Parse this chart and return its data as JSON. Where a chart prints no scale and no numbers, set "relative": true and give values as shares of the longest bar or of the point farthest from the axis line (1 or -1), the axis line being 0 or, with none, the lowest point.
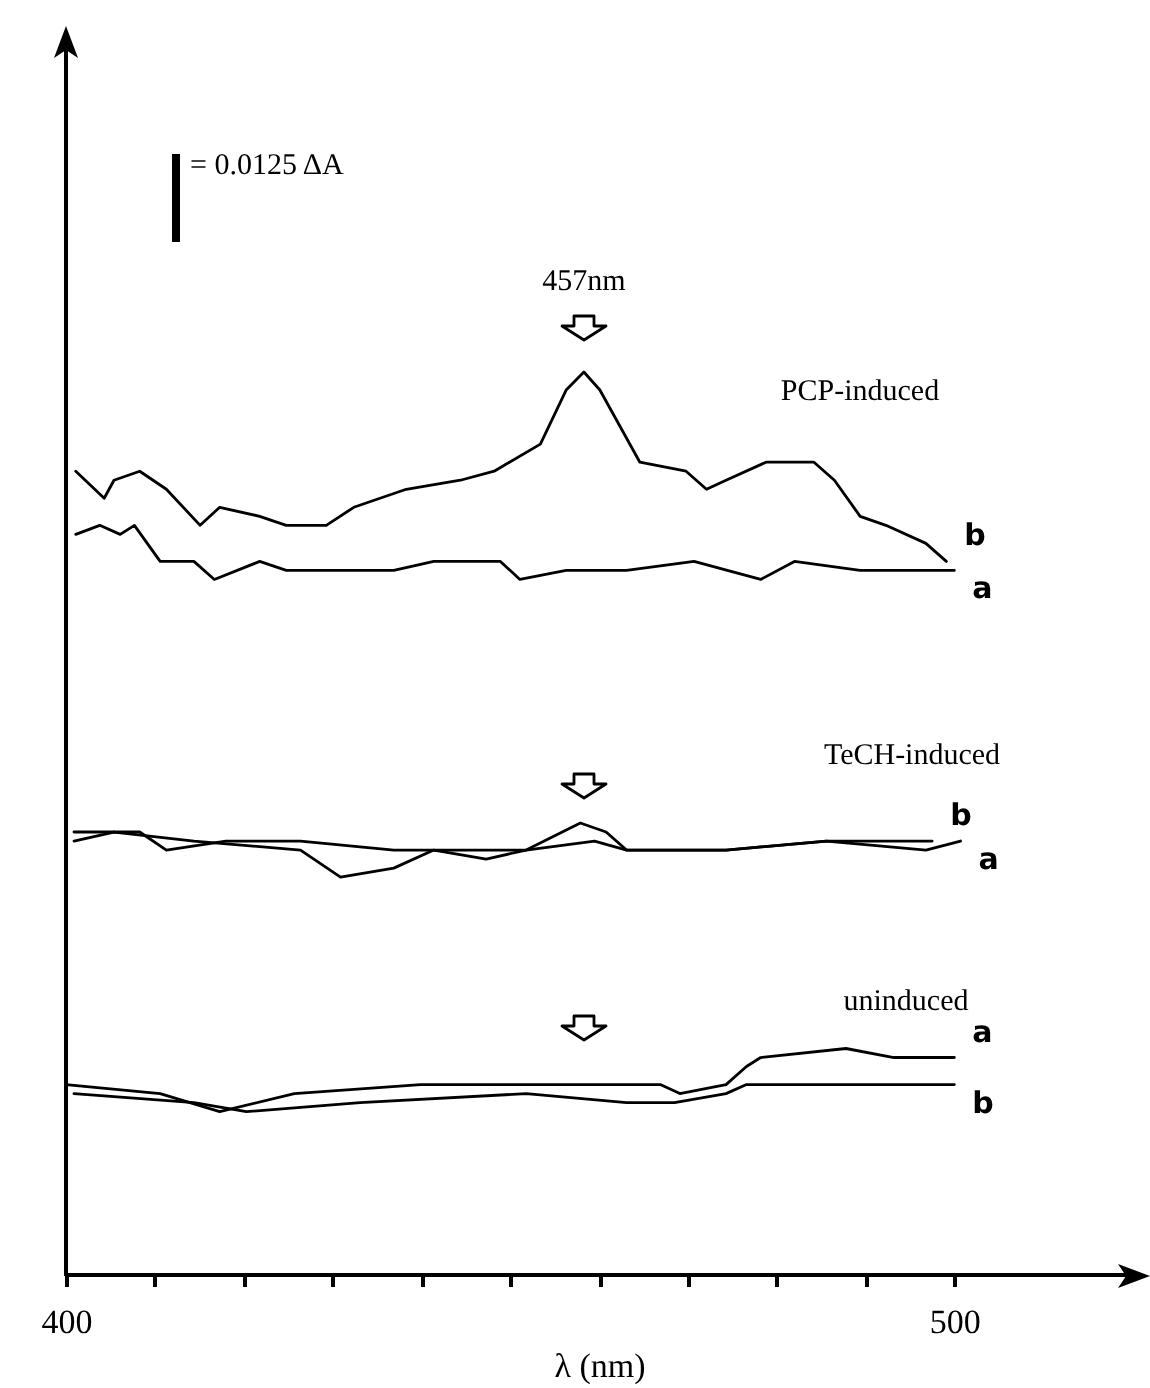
{
  "chart_data": {
    "type": "line",
    "relative": true,
    "xlabel": "λ (nm)",
    "xlim": [
      400,
      520
    ],
    "xticks": [
      400,
      {
        "value": 410,
        "label": null
      },
      {
        "value": 420,
        "label": null
      },
      {
        "value": 430,
        "label": null
      },
      {
        "value": 440,
        "label": null
      },
      {
        "value": 450,
        "label": null
      },
      {
        "value": 460,
        "label": null
      },
      {
        "value": 470,
        "label": null
      },
      {
        "value": 480,
        "label": null
      },
      {
        "value": 490,
        "label": null
      },
      500
    ],
    "annotations": [
      "= 0.0125 ΔA",
      "457nm",
      "PCP-induced",
      "TeCH-induced",
      "uninduced"
    ],
    "series": [
      {
        "name": "b",
        "color": "#000000",
        "x": [
          401.1,
          404.3,
          405.4,
          408.3,
          411.3,
          415.1,
          417.3,
          421.8,
          424.8,
          429.3,
          432.4,
          438.3,
          444.4,
          448.2,
          453.4,
          456.3,
          458.3,
          460.1,
          464.6,
          469.8,
          472.1,
          474.3,
          478.8,
          484.2,
          486.5,
          489.4,
          492.3,
          496.8,
          499.1
        ],
        "values": [
          0.89,
          0.86,
          0.88,
          0.89,
          0.87,
          0.83,
          0.85,
          0.84,
          0.83,
          0.83,
          0.85,
          0.87,
          0.88,
          0.89,
          0.92,
          0.98,
          1.0,
          0.98,
          0.9,
          0.89,
          0.87,
          0.88,
          0.9,
          0.9,
          0.88,
          0.84,
          0.83,
          0.81,
          0.79
        ]
      },
      {
        "name": "a",
        "color": "#000000",
        "x": [
          401.1,
          403.8,
          406.1,
          407.7,
          410.6,
          414.4,
          416.7,
          421.8,
          424.8,
          430.9,
          436.9,
          441.4,
          448.9,
          451.1,
          456.3,
          463.1,
          470.7,
          478.2,
          482.0,
          489.4,
          496.8,
          500.0
        ],
        "values": [
          0.82,
          0.83,
          0.82,
          0.83,
          0.79,
          0.79,
          0.77,
          0.79,
          0.78,
          0.78,
          0.78,
          0.79,
          0.79,
          0.77,
          0.78,
          0.78,
          0.79,
          0.77,
          0.79,
          0.78,
          0.78,
          0.78
        ]
      },
      {
        "name": "b",
        "color": "#000000",
        "x": [
          400.9,
          405.4,
          414.4,
          426.4,
          430.9,
          436.9,
          441.4,
          447.3,
          451.8,
          457.9,
          460.8,
          463.1,
          474.3,
          485.6,
          497.5
        ],
        "values": [
          0.48,
          0.49,
          0.48,
          0.47,
          0.44,
          0.45,
          0.47,
          0.46,
          0.47,
          0.5,
          0.49,
          0.47,
          0.47,
          0.48,
          0.48
        ]
      },
      {
        "name": "a",
        "color": "#000000",
        "x": [
          400.9,
          408.3,
          411.3,
          418.0,
          426.4,
          436.9,
          451.8,
          459.5,
          463.1,
          474.3,
          485.6,
          496.8,
          500.7
        ],
        "values": [
          0.49,
          0.49,
          0.47,
          0.48,
          0.48,
          0.47,
          0.47,
          0.48,
          0.47,
          0.47,
          0.48,
          0.47,
          0.48
        ]
      },
      {
        "name": "a",
        "color": "#000000",
        "x": [
          400.0,
          410.6,
          417.3,
          425.7,
          439.9,
          459.5,
          466.9,
          469.1,
          474.3,
          476.6,
          478.2,
          487.8,
          493.2,
          500.0
        ],
        "values": [
          0.21,
          0.2,
          0.18,
          0.2,
          0.21,
          0.21,
          0.21,
          0.2,
          0.21,
          0.23,
          0.24,
          0.25,
          0.24,
          0.24
        ]
      },
      {
        "name": "b",
        "color": "#000000",
        "x": [
          400.9,
          414.4,
          420.3,
          433.1,
          451.8,
          463.1,
          468.5,
          474.3,
          476.6,
          489.4,
          500.0
        ],
        "values": [
          0.2,
          0.19,
          0.18,
          0.19,
          0.2,
          0.19,
          0.19,
          0.2,
          0.21,
          0.21,
          0.21
        ]
      }
    ]
  }
}
